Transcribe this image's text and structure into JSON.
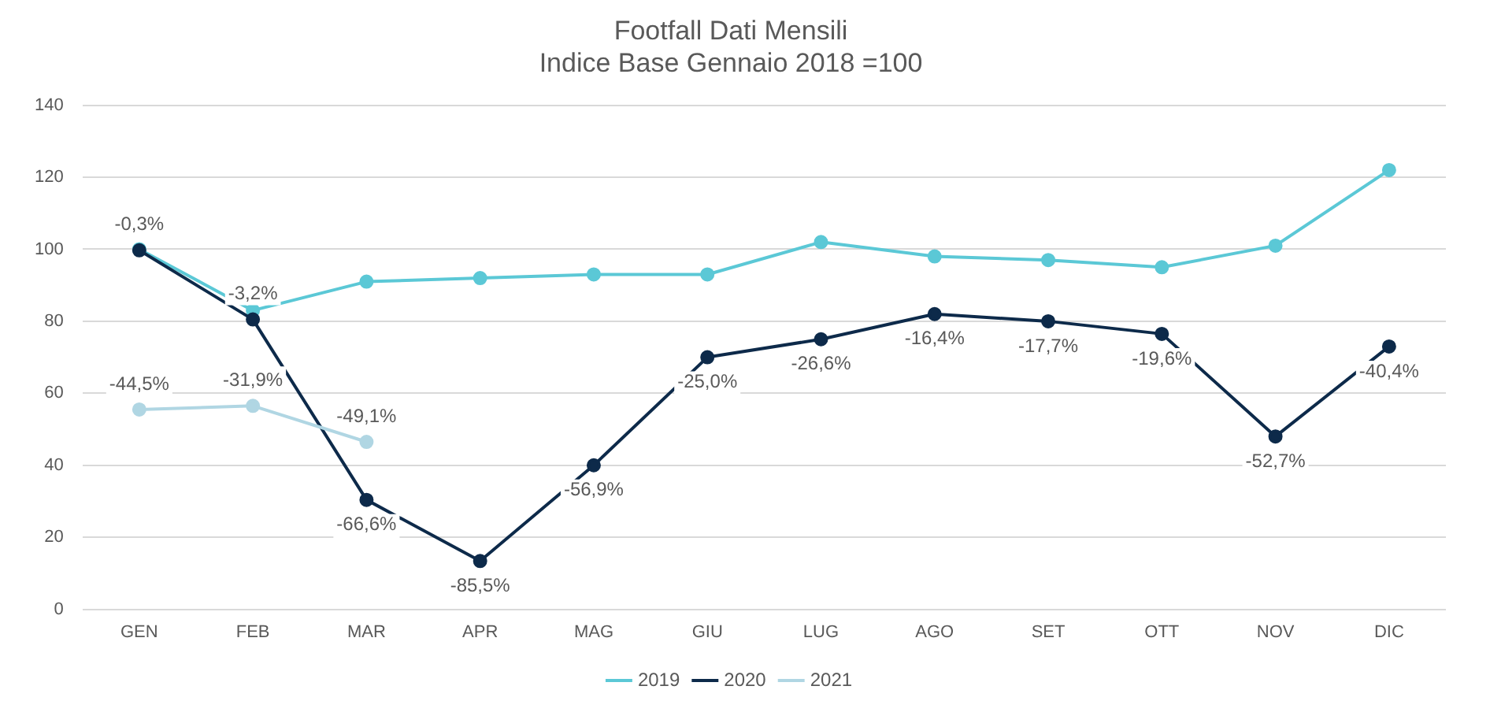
{
  "chart_data": {
    "type": "line",
    "title": [
      "Footfall Dati Mensili",
      "Indice Base Gennaio 2018 =100"
    ],
    "categories": [
      "GEN",
      "FEB",
      "MAR",
      "APR",
      "MAG",
      "GIU",
      "LUG",
      "AGO",
      "SET",
      "OTT",
      "NOV",
      "DIC"
    ],
    "series": [
      {
        "name": "2019",
        "color": "#5bc8d6",
        "values": [
          100,
          83,
          91,
          92,
          93,
          93,
          102,
          98,
          97,
          95,
          101,
          122
        ]
      },
      {
        "name": "2020",
        "color": "#0d2a4a",
        "values": [
          99.7,
          80.5,
          30.4,
          13.4,
          40,
          70,
          75,
          82,
          80,
          76.5,
          48,
          73
        ]
      },
      {
        "name": "2021",
        "color": "#b0d6e3",
        "values": [
          55.5,
          56.5,
          46.5,
          null,
          null,
          null,
          null,
          null,
          null,
          null,
          null,
          null
        ]
      }
    ],
    "annotations": [
      {
        "text": "-0,3%",
        "x": "GEN",
        "y": 99.7
      },
      {
        "text": "-3,2%",
        "x": "FEB",
        "y": 80.5
      },
      {
        "text": "-66,6%",
        "x": "MAR",
        "y": 30.4
      },
      {
        "text": "-85,5%",
        "x": "APR",
        "y": 13.4
      },
      {
        "text": "-56,9%",
        "x": "MAG",
        "y": 40
      },
      {
        "text": "-25,0%",
        "x": "GIU",
        "y": 70
      },
      {
        "text": "-26,6%",
        "x": "LUG",
        "y": 75
      },
      {
        "text": "-16,4%",
        "x": "AGO",
        "y": 82
      },
      {
        "text": "-17,7%",
        "x": "SET",
        "y": 80
      },
      {
        "text": "-19,6%",
        "x": "OTT",
        "y": 76.5
      },
      {
        "text": "-52,7%",
        "x": "NOV",
        "y": 48
      },
      {
        "text": "-40,4%",
        "x": "DIC",
        "y": 73
      },
      {
        "text": "-44,5%",
        "x": "GEN",
        "y": 55.5
      },
      {
        "text": "-31,9%",
        "x": "FEB",
        "y": 56.5
      },
      {
        "text": "-49,1%",
        "x": "MAR",
        "y": 46.5
      }
    ],
    "ylim": [
      0,
      140
    ],
    "yticks": [
      0,
      20,
      40,
      60,
      80,
      100,
      120,
      140
    ],
    "grid": "y",
    "legend": "bottom",
    "marker": "circle",
    "line_style": "solid"
  }
}
